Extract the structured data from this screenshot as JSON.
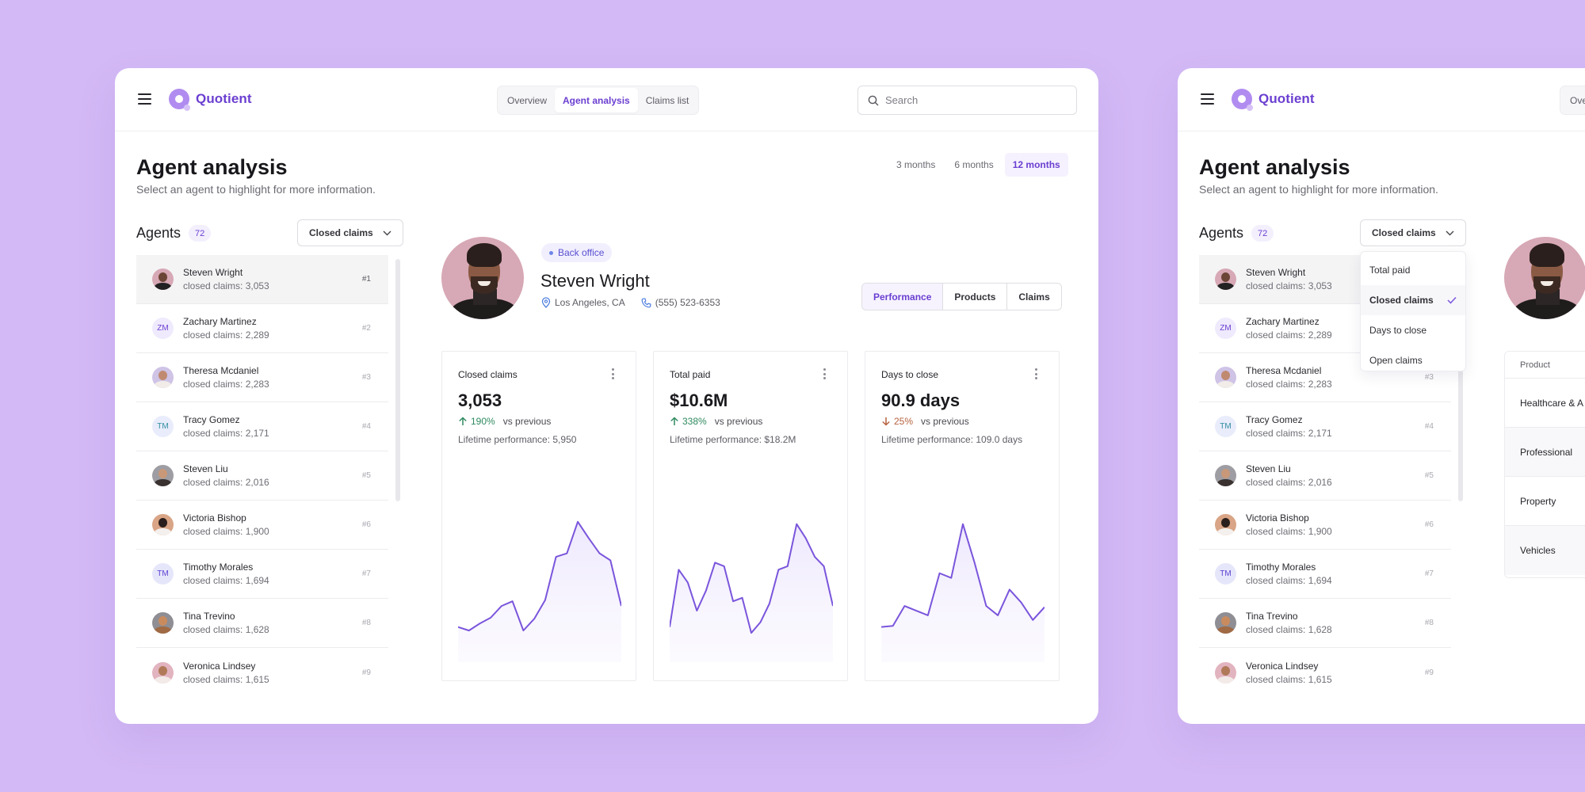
{
  "app": {
    "name": "Quotient",
    "brand_color": "#6b3fd1",
    "background_color": "#d3b9f5"
  },
  "header": {
    "menu_icon": "hamburger-menu-icon",
    "nav_tabs": [
      {
        "label": "Overview",
        "active": false
      },
      {
        "label": "Agent analysis",
        "active": true
      },
      {
        "label": "Claims list",
        "active": false
      }
    ],
    "search": {
      "placeholder": "Search",
      "value": "",
      "icon": "search-icon"
    }
  },
  "page": {
    "title": "Agent analysis",
    "subtitle": "Select an agent to highlight for more information.",
    "time_ranges": [
      {
        "label": "3 months",
        "active": false
      },
      {
        "label": "6 months",
        "active": false
      },
      {
        "label": "12 months",
        "active": true
      }
    ]
  },
  "agents": {
    "label": "Agents",
    "count": "72",
    "metric_select": {
      "value": "Closed claims",
      "icon": "chevron-down-icon"
    },
    "metric_options": [
      {
        "label": "Total paid",
        "selected": false
      },
      {
        "label": "Closed claims",
        "selected": true
      },
      {
        "label": "Days to close",
        "selected": false
      },
      {
        "label": "Open claims",
        "selected": false
      }
    ],
    "list": [
      {
        "name": "Steven Wright",
        "metric": "closed claims: 3,053",
        "rank": "#1",
        "avatar": "photo",
        "initials": "",
        "selected": true
      },
      {
        "name": "Zachary Martinez",
        "metric": "closed claims: 2,289",
        "rank": "#2",
        "avatar": "initials",
        "initials": "ZM",
        "selected": false
      },
      {
        "name": "Theresa Mcdaniel",
        "metric": "closed claims: 2,283",
        "rank": "#3",
        "avatar": "photo",
        "initials": "",
        "selected": false
      },
      {
        "name": "Tracy Gomez",
        "metric": "closed claims: 2,171",
        "rank": "#4",
        "avatar": "initials",
        "initials": "TM",
        "selected": false
      },
      {
        "name": "Steven Liu",
        "metric": "closed claims: 2,016",
        "rank": "#5",
        "avatar": "photo",
        "initials": "",
        "selected": false
      },
      {
        "name": "Victoria Bishop",
        "metric": "closed claims: 1,900",
        "rank": "#6",
        "avatar": "photo",
        "initials": "",
        "selected": false
      },
      {
        "name": "Timothy Morales",
        "metric": "closed claims: 1,694",
        "rank": "#7",
        "avatar": "initials",
        "initials": "TM",
        "selected": false
      },
      {
        "name": "Tina Trevino",
        "metric": "closed claims: 1,628",
        "rank": "#8",
        "avatar": "photo",
        "initials": "",
        "selected": false
      },
      {
        "name": "Veronica Lindsey",
        "metric": "closed claims: 1,615",
        "rank": "#9",
        "avatar": "photo",
        "initials": "",
        "selected": false
      }
    ]
  },
  "profile": {
    "tag": "Back office",
    "name": "Steven Wright",
    "location": "Los Angeles, CA",
    "phone": "(555) 523-6353",
    "tabs": [
      {
        "label": "Performance",
        "active": true
      },
      {
        "label": "Products",
        "active": false
      },
      {
        "label": "Claims",
        "active": false
      }
    ]
  },
  "cards": [
    {
      "title": "Closed claims",
      "value": "3,053",
      "change": "190%",
      "direction": "up",
      "change_suffix": "vs previous",
      "lifetime": "Lifetime performance: 5,950",
      "series": [
        30,
        27,
        33,
        38,
        48,
        52,
        27,
        37,
        53,
        90,
        93,
        120,
        106,
        93,
        87,
        48
      ]
    },
    {
      "title": "Total paid",
      "value": "$10.6M",
      "change": "338%",
      "direction": "up",
      "change_suffix": "vs previous",
      "lifetime": "Lifetime performance: $18.2M",
      "series": [
        30,
        79,
        68,
        44,
        61,
        85,
        82,
        52,
        55,
        25,
        34,
        50,
        79,
        82,
        118,
        106,
        90,
        82,
        48
      ]
    },
    {
      "title": "Days to close",
      "value": "90.9 days",
      "change": "25%",
      "direction": "down",
      "change_suffix": "vs previous",
      "lifetime": "Lifetime performance: 109.0 days",
      "series": [
        30,
        31,
        48,
        44,
        40,
        76,
        72,
        118,
        85,
        48,
        40,
        62,
        51,
        36,
        47
      ]
    }
  ],
  "product_table": {
    "header": "Product",
    "rows": [
      "Healthcare & A",
      "Professional",
      "Property",
      "Vehicles"
    ]
  },
  "chart_data": [
    {
      "type": "area",
      "title": "Closed claims",
      "x": [
        1,
        2,
        3,
        4,
        5,
        6,
        7,
        8,
        9,
        10,
        11,
        12,
        13,
        14,
        15,
        16
      ],
      "values": [
        30,
        27,
        33,
        38,
        48,
        52,
        27,
        37,
        53,
        90,
        93,
        120,
        106,
        93,
        87,
        48
      ],
      "xlabel": "",
      "ylabel": "",
      "grid": false
    },
    {
      "type": "area",
      "title": "Total paid",
      "x": [
        1,
        2,
        3,
        4,
        5,
        6,
        7,
        8,
        9,
        10,
        11,
        12,
        13,
        14,
        15,
        16,
        17,
        18,
        19
      ],
      "values": [
        30,
        79,
        68,
        44,
        61,
        85,
        82,
        52,
        55,
        25,
        34,
        50,
        79,
        82,
        118,
        106,
        90,
        82,
        48
      ],
      "xlabel": "",
      "ylabel": "",
      "grid": false
    },
    {
      "type": "area",
      "title": "Days to close",
      "x": [
        1,
        2,
        3,
        4,
        5,
        6,
        7,
        8,
        9,
        10,
        11,
        12,
        13,
        14,
        15
      ],
      "values": [
        30,
        31,
        48,
        44,
        40,
        76,
        72,
        118,
        85,
        48,
        40,
        62,
        51,
        36,
        47
      ],
      "xlabel": "",
      "ylabel": "",
      "grid": false
    }
  ]
}
